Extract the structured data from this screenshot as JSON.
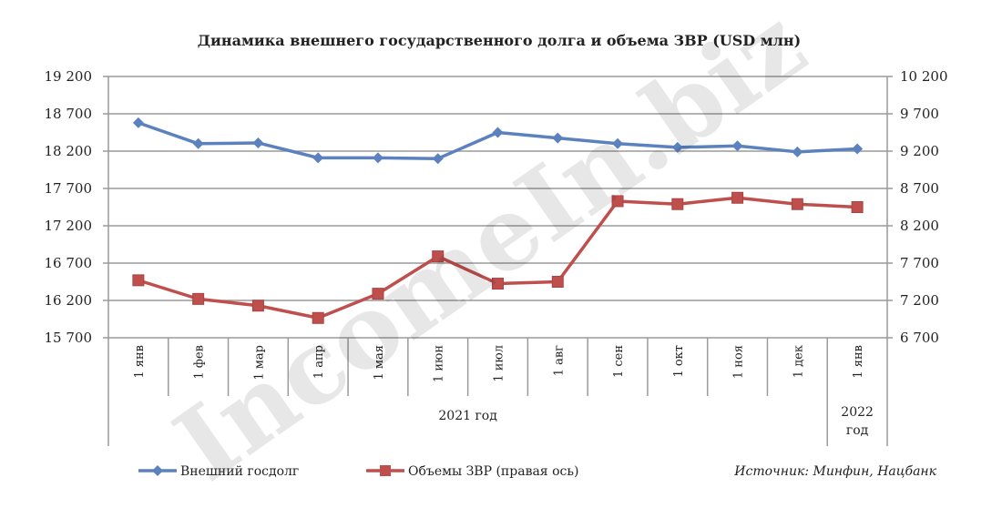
{
  "chart_data": {
    "type": "line",
    "title": "Динамика внешнего государственного долга и объема ЗВР (USD млн)",
    "categories": [
      "1 янв",
      "1 фев",
      "1 мар",
      "1 апр",
      "1 мая",
      "1 июн",
      "1 июл",
      "1 авг",
      "1 сен",
      "1 окт",
      "1 ноя",
      "1 дек",
      "1 янв"
    ],
    "category_groups": [
      {
        "label": "2021 год",
        "span": 12
      },
      {
        "label": "2022 год",
        "span": 1
      }
    ],
    "y_left": {
      "range": [
        15700,
        19200
      ],
      "ticks": [
        "15 700",
        "16 200",
        "16 700",
        "17 200",
        "17 700",
        "18 200",
        "18 700",
        "19 200"
      ]
    },
    "y_right": {
      "range": [
        6700,
        10200
      ],
      "ticks": [
        "6 700",
        "7 200",
        "7 700",
        "8 200",
        "8 700",
        "9 200",
        "9 700",
        "10 200"
      ]
    },
    "grid": true,
    "legend_position": "bottom",
    "series": [
      {
        "name": "Внешний госдолг",
        "axis": "left",
        "color": "#5b82bf",
        "marker": "diamond",
        "values": [
          18580,
          18300,
          18310,
          18110,
          18110,
          18100,
          18450,
          18375,
          18300,
          18250,
          18270,
          18190,
          18230
        ]
      },
      {
        "name": "Объемы ЗВР (правая  ось)",
        "axis": "right",
        "color": "#bf4f4d",
        "marker": "square",
        "values": [
          7470,
          7220,
          7130,
          6965,
          7290,
          7790,
          7425,
          7450,
          8530,
          8490,
          8575,
          8490,
          8450
        ]
      }
    ],
    "source": "Источник: Минфин,  Нацбанк",
    "watermark": "IncomeIn.biz"
  }
}
